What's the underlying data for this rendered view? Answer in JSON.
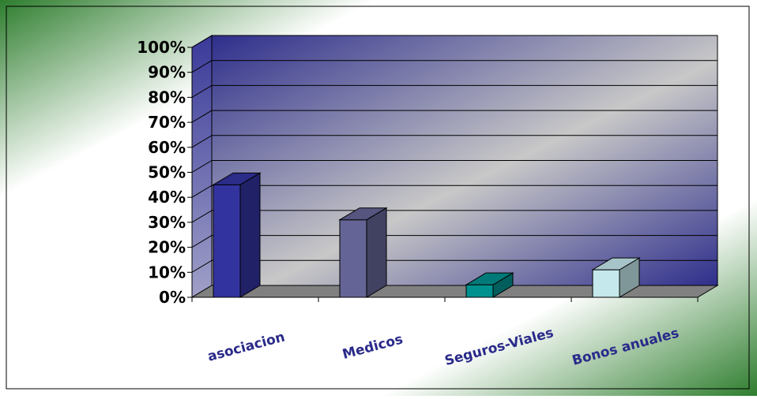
{
  "chart_data": {
    "type": "bar",
    "title": "",
    "xlabel": "",
    "ylabel": "",
    "categories": [
      "asociacion",
      "Medicos",
      "Seguros-Viales",
      "Bonos anuales"
    ],
    "values": [
      45,
      31,
      5,
      11
    ],
    "value_unit": "%",
    "ylim": [
      0,
      100
    ],
    "yticks": [
      "0%",
      "10%",
      "20%",
      "30%",
      "40%",
      "50%",
      "60%",
      "70%",
      "80%",
      "90%",
      "100%"
    ],
    "grid": true,
    "legend": "none",
    "style": "3d-column",
    "colors": {
      "bars": [
        "#3333a0",
        "#646496",
        "#00908e",
        "#c4e8ec"
      ],
      "tick_text": "#000000",
      "category_text": "#2a2a8a",
      "wall_dark": "#2e2e8c",
      "wall_light": "#c8c8c8",
      "floor": "#808080",
      "background_green": "#2e7d2e"
    }
  }
}
